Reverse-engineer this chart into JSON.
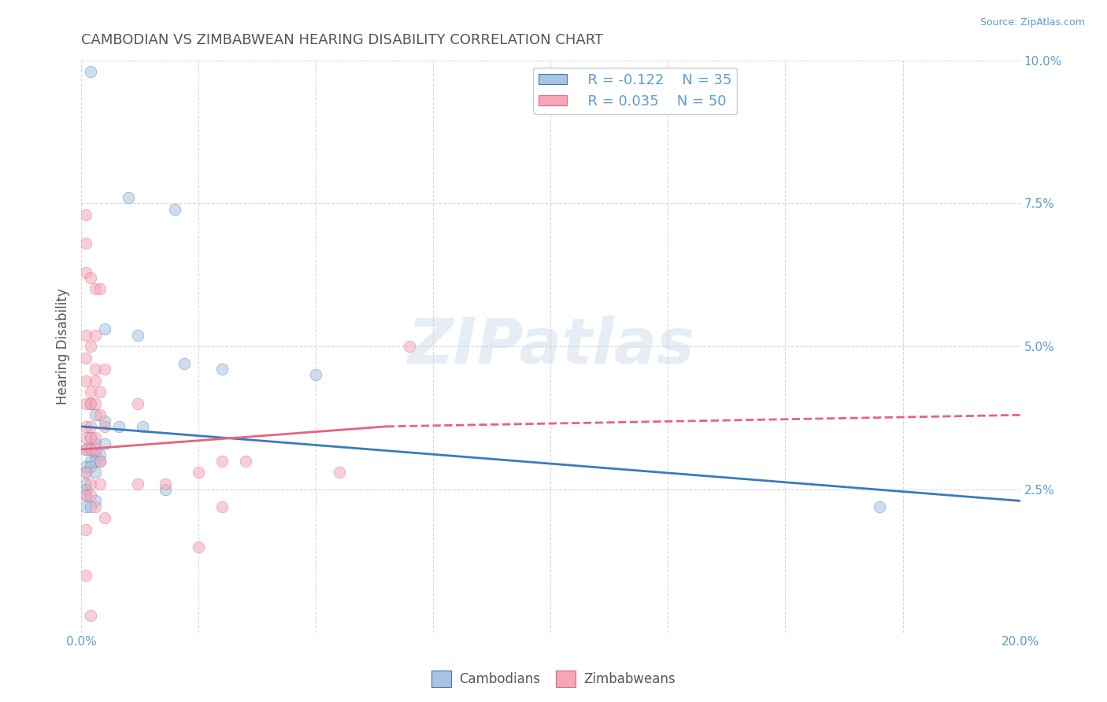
{
  "title": "CAMBODIAN VS ZIMBABWEAN HEARING DISABILITY CORRELATION CHART",
  "source": "Source: ZipAtlas.com",
  "ylabel": "Hearing Disability",
  "watermark": "ZIPatlas",
  "xlim": [
    0.0,
    0.2
  ],
  "ylim": [
    0.0,
    0.1
  ],
  "cambodian_color": "#a8c4e0",
  "zimbabwean_color": "#f4a7b9",
  "line_color_cambodian": "#3a7abf",
  "line_color_zimbabwean": "#e8637a",
  "legend_R_cambodian": "R = -0.122",
  "legend_N_cambodian": "N = 35",
  "legend_R_zimbabwean": "R = 0.035",
  "legend_N_zimbabwean": "N = 50",
  "cambodian_line": [
    [
      0.0,
      0.036
    ],
    [
      0.2,
      0.023
    ]
  ],
  "zimbabwean_line_solid": [
    [
      0.0,
      0.032
    ],
    [
      0.065,
      0.036
    ]
  ],
  "zimbabwean_line_dashed": [
    [
      0.065,
      0.036
    ],
    [
      0.2,
      0.038
    ]
  ],
  "cambodian_scatter": [
    [
      0.002,
      0.098
    ],
    [
      0.01,
      0.076
    ],
    [
      0.02,
      0.074
    ],
    [
      0.005,
      0.053
    ],
    [
      0.012,
      0.052
    ],
    [
      0.022,
      0.047
    ],
    [
      0.03,
      0.046
    ],
    [
      0.05,
      0.045
    ],
    [
      0.002,
      0.04
    ],
    [
      0.003,
      0.038
    ],
    [
      0.005,
      0.037
    ],
    [
      0.008,
      0.036
    ],
    [
      0.013,
      0.036
    ],
    [
      0.002,
      0.034
    ],
    [
      0.003,
      0.033
    ],
    [
      0.005,
      0.033
    ],
    [
      0.001,
      0.032
    ],
    [
      0.002,
      0.032
    ],
    [
      0.003,
      0.031
    ],
    [
      0.004,
      0.031
    ],
    [
      0.002,
      0.03
    ],
    [
      0.003,
      0.03
    ],
    [
      0.004,
      0.03
    ],
    [
      0.001,
      0.029
    ],
    [
      0.002,
      0.029
    ],
    [
      0.001,
      0.028
    ],
    [
      0.003,
      0.028
    ],
    [
      0.001,
      0.026
    ],
    [
      0.001,
      0.025
    ],
    [
      0.018,
      0.025
    ],
    [
      0.001,
      0.024
    ],
    [
      0.003,
      0.023
    ],
    [
      0.001,
      0.022
    ],
    [
      0.002,
      0.022
    ],
    [
      0.17,
      0.022
    ]
  ],
  "zimbabwean_scatter": [
    [
      0.001,
      0.073
    ],
    [
      0.001,
      0.068
    ],
    [
      0.001,
      0.063
    ],
    [
      0.002,
      0.062
    ],
    [
      0.003,
      0.06
    ],
    [
      0.004,
      0.06
    ],
    [
      0.001,
      0.052
    ],
    [
      0.003,
      0.052
    ],
    [
      0.002,
      0.05
    ],
    [
      0.07,
      0.05
    ],
    [
      0.001,
      0.048
    ],
    [
      0.003,
      0.046
    ],
    [
      0.005,
      0.046
    ],
    [
      0.001,
      0.044
    ],
    [
      0.003,
      0.044
    ],
    [
      0.002,
      0.042
    ],
    [
      0.004,
      0.042
    ],
    [
      0.001,
      0.04
    ],
    [
      0.002,
      0.04
    ],
    [
      0.003,
      0.04
    ],
    [
      0.004,
      0.038
    ],
    [
      0.001,
      0.036
    ],
    [
      0.002,
      0.036
    ],
    [
      0.005,
      0.036
    ],
    [
      0.001,
      0.034
    ],
    [
      0.002,
      0.034
    ],
    [
      0.003,
      0.034
    ],
    [
      0.001,
      0.032
    ],
    [
      0.002,
      0.032
    ],
    [
      0.003,
      0.032
    ],
    [
      0.004,
      0.03
    ],
    [
      0.03,
      0.03
    ],
    [
      0.035,
      0.03
    ],
    [
      0.001,
      0.028
    ],
    [
      0.025,
      0.028
    ],
    [
      0.002,
      0.026
    ],
    [
      0.004,
      0.026
    ],
    [
      0.012,
      0.026
    ],
    [
      0.018,
      0.026
    ],
    [
      0.001,
      0.024
    ],
    [
      0.002,
      0.024
    ],
    [
      0.003,
      0.022
    ],
    [
      0.03,
      0.022
    ],
    [
      0.005,
      0.02
    ],
    [
      0.001,
      0.018
    ],
    [
      0.025,
      0.015
    ],
    [
      0.001,
      0.01
    ],
    [
      0.012,
      0.04
    ],
    [
      0.055,
      0.028
    ],
    [
      0.002,
      0.003
    ]
  ],
  "background_color": "#ffffff",
  "grid_color": "#d8d8d8",
  "title_color": "#555555",
  "axis_color": "#5b9bd5",
  "marker_size": 110,
  "marker_alpha": 0.55
}
